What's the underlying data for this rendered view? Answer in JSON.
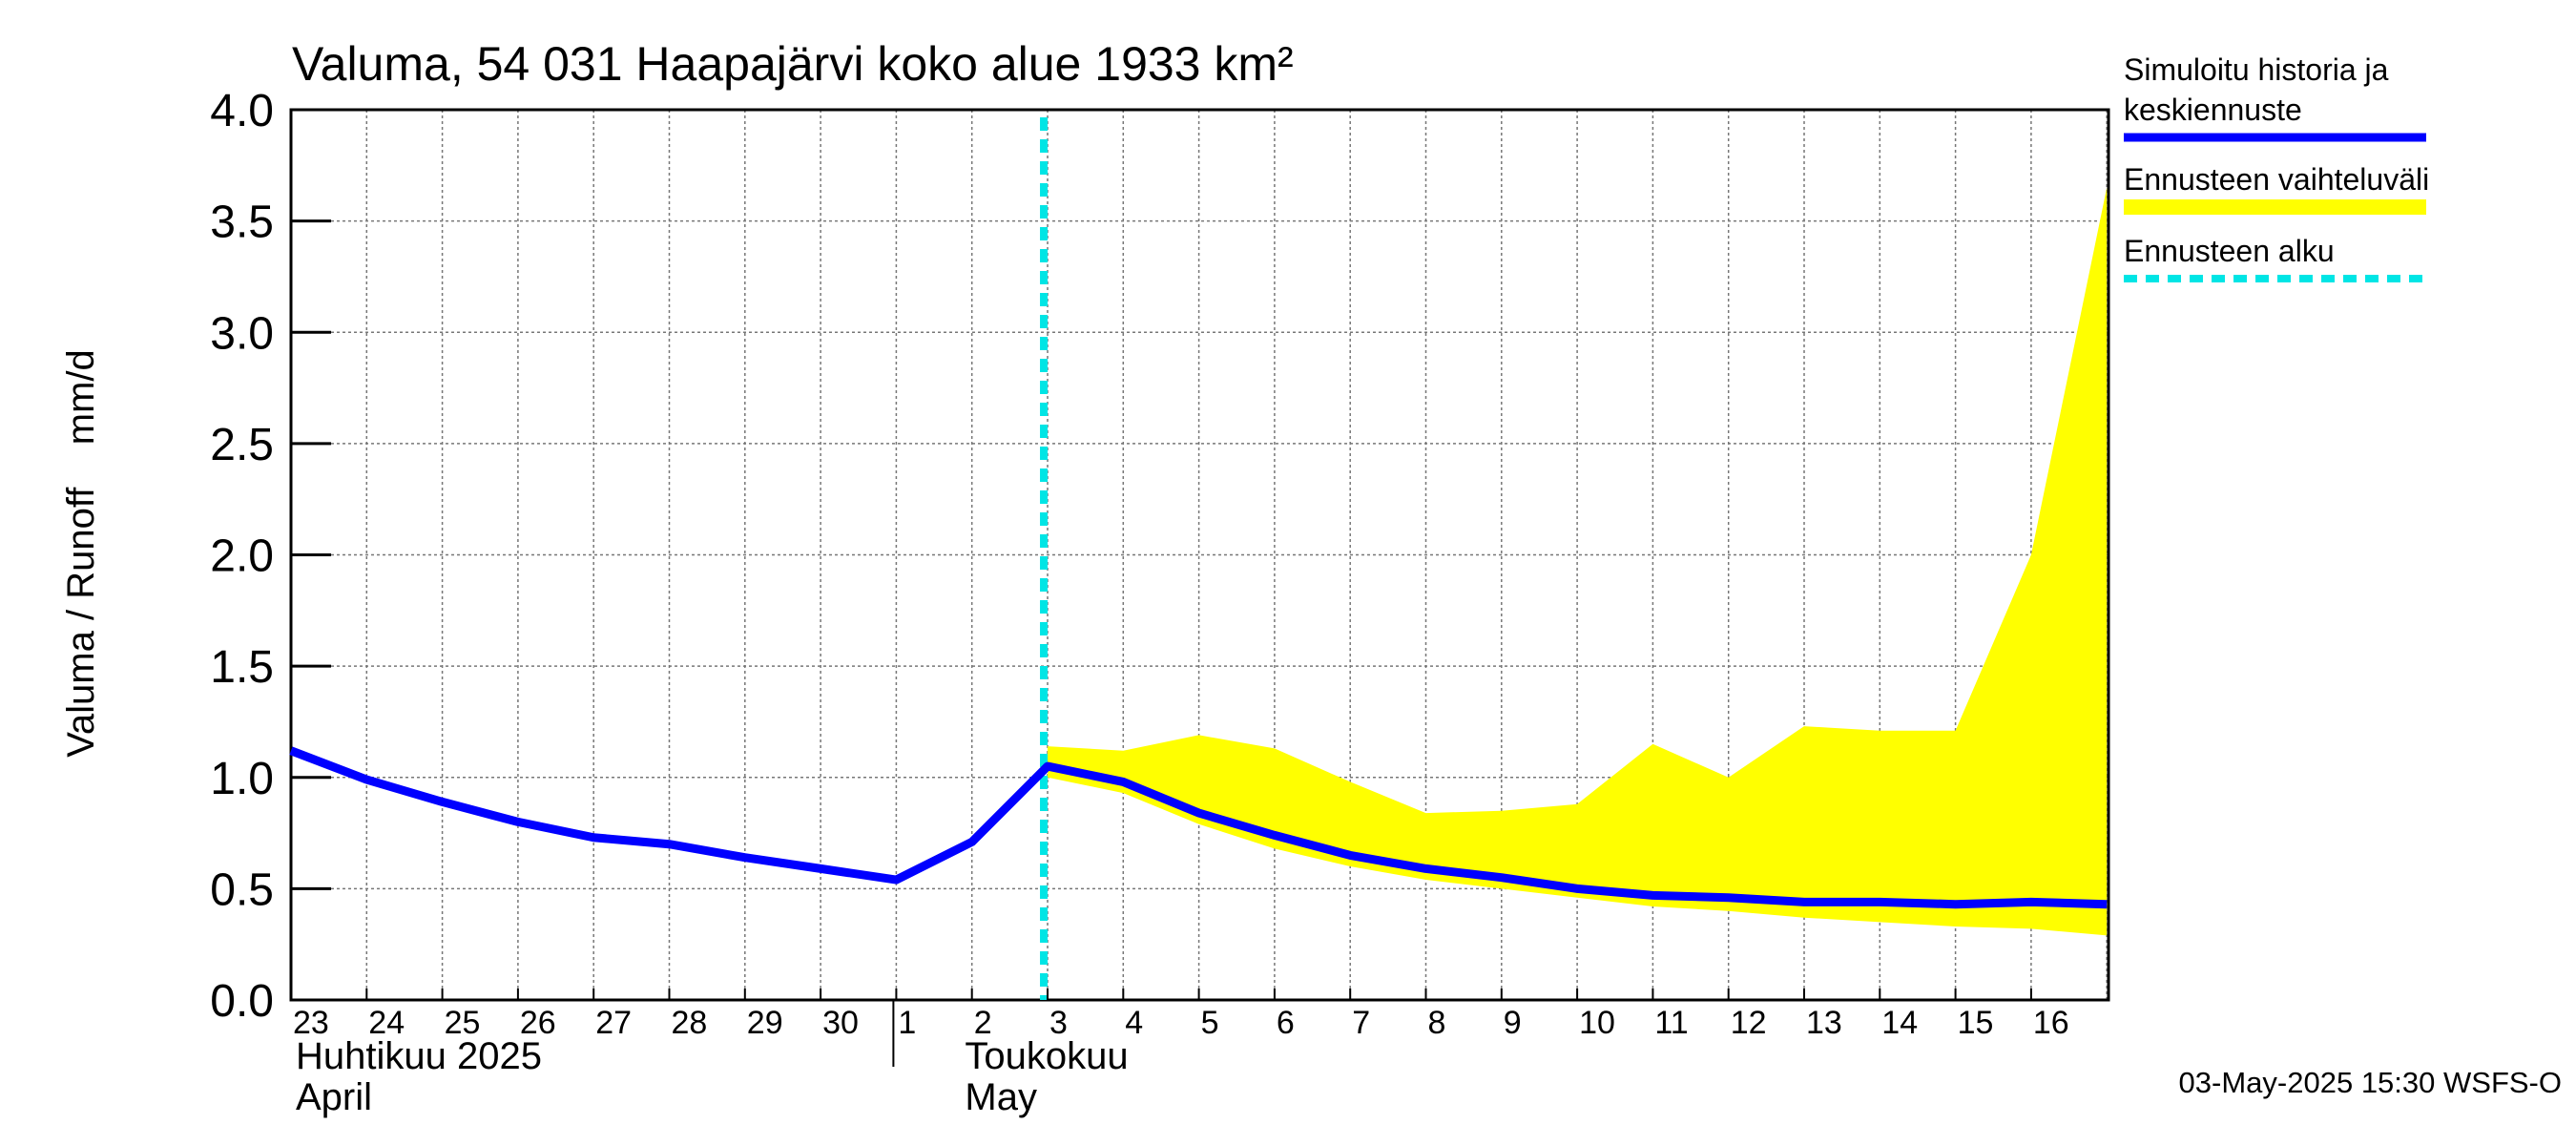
{
  "chart_data": {
    "type": "line",
    "title": "Valuma, 54 031 Haapajärvi koko alue 1933 km²",
    "ylabel": "Valuma / Runoff    mm/d",
    "ylim": [
      0,
      4.0
    ],
    "yticks": [
      "0.0",
      "0.5",
      "1.0",
      "1.5",
      "2.0",
      "2.5",
      "3.0",
      "3.5",
      "4.0"
    ],
    "yticks_values": [
      0,
      0.5,
      1.0,
      1.5,
      2.0,
      2.5,
      3.0,
      3.5,
      4.0
    ],
    "grid": true,
    "x": [
      "23",
      "24",
      "25",
      "26",
      "27",
      "28",
      "29",
      "30",
      "1",
      "2",
      "3",
      "4",
      "5",
      "6",
      "7",
      "8",
      "9",
      "10",
      "11",
      "12",
      "13",
      "14",
      "15",
      "16",
      "17"
    ],
    "xtick_labels": [
      "23",
      "24",
      "25",
      "26",
      "27",
      "28",
      "29",
      "30",
      "1",
      "2",
      "3",
      "4",
      "5",
      "6",
      "7",
      "8",
      "9",
      "10",
      "11",
      "12",
      "13",
      "14",
      "15",
      "16"
    ],
    "month_labels": [
      {
        "line1": "Huhtikuu  2025",
        "line2": "April",
        "at_index": 0
      },
      {
        "line1": "Toukokuu",
        "line2": "May",
        "at_index": 9
      }
    ],
    "series": [
      {
        "name": "Simuloitu historia ja keskiennuste",
        "color": "#0000ff",
        "values": [
          1.12,
          0.99,
          0.89,
          0.8,
          0.73,
          0.7,
          0.64,
          0.59,
          0.54,
          0.71,
          1.05,
          0.98,
          0.84,
          0.74,
          0.65,
          0.59,
          0.55,
          0.5,
          0.47,
          0.46,
          0.44,
          0.44,
          0.43,
          0.44,
          0.43
        ]
      },
      {
        "name": "Ennusteen vaihteluväli",
        "color": "#ffff00",
        "type": "band",
        "x_start_index": 10,
        "upper": [
          1.14,
          1.12,
          1.19,
          1.13,
          0.98,
          0.84,
          0.85,
          0.88,
          1.15,
          1.0,
          1.23,
          1.21,
          1.21,
          2.0,
          3.65
        ],
        "lower": [
          1.0,
          0.93,
          0.79,
          0.68,
          0.6,
          0.54,
          0.5,
          0.46,
          0.42,
          0.4,
          0.37,
          0.35,
          0.33,
          0.32,
          0.29
        ]
      },
      {
        "name": "Ennusteen alku",
        "color": "#00e5e5",
        "type": "vline",
        "x_value": 2.95
      }
    ],
    "legend_position": "right",
    "footer": "03-May-2025 15:30 WSFS-O"
  }
}
